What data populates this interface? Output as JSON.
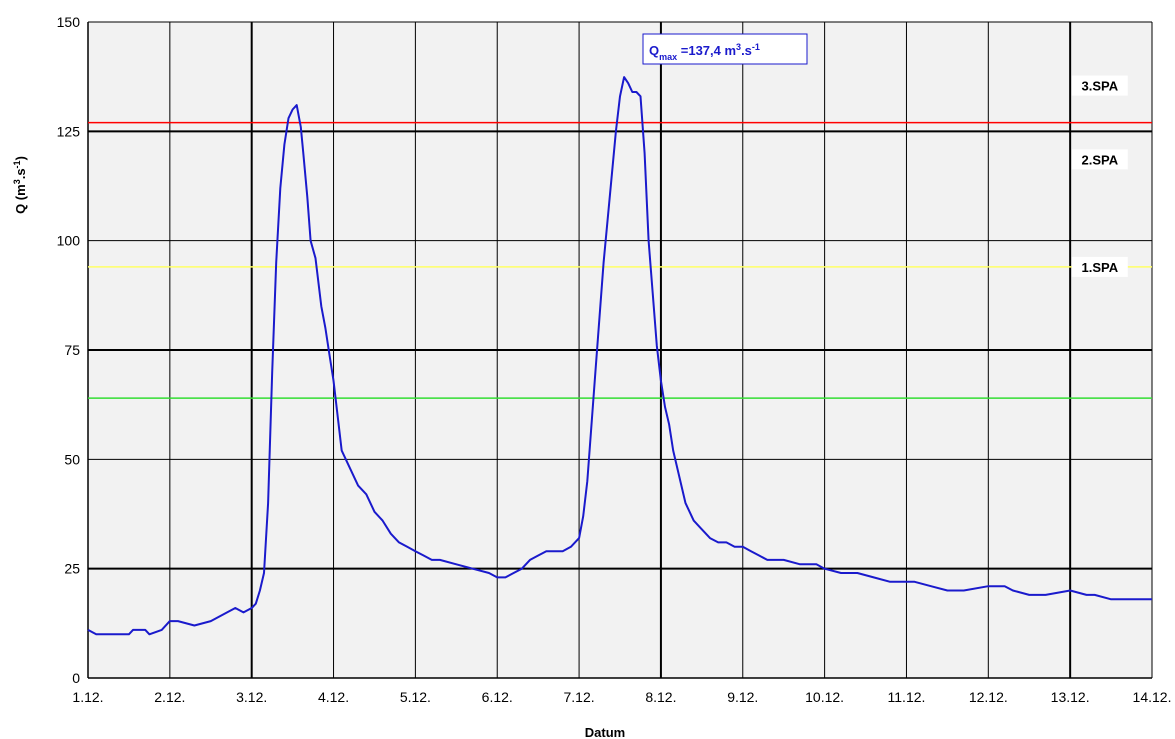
{
  "chart_data": {
    "type": "line",
    "xlabel": "Datum",
    "ylabel_main": "Q (m",
    "ylabel_sup1": "3",
    "ylabel_mid": ".s",
    "ylabel_sup2": "-1",
    "ylabel_end": ")",
    "x_tick_labels": [
      "1.12.",
      "2.12.",
      "3.12.",
      "4.12.",
      "5.12.",
      "6.12.",
      "7.12.",
      "8.12.",
      "9.12.",
      "10.12.",
      "11.12.",
      "12.12.",
      "13.12.",
      "14.12."
    ],
    "xlim_days": [
      1,
      14
    ],
    "ylim": [
      0,
      150
    ],
    "y_ticks": [
      0,
      25,
      50,
      75,
      100,
      125,
      150
    ],
    "grid": true,
    "colors": {
      "plot_background": "#f2f2f2",
      "grid": "#000000",
      "series": "#1a1acc",
      "level_3spa": "#ff0000",
      "level_1spa": "#ffff66",
      "level_green": "#33dd33"
    },
    "levels": [
      {
        "name": "3.SPA",
        "value": 127,
        "color": "#ff0000"
      },
      {
        "name": "2.SPA",
        "value": 125,
        "color": "#000000"
      },
      {
        "name": "1.SPA",
        "value": 94,
        "color": "#ffff66"
      },
      {
        "name": "",
        "value": 64,
        "color": "#33dd33"
      }
    ],
    "annotation": {
      "q": "Q",
      "sub": "max",
      "value": " =137,4 m",
      "sup1": "3",
      "mid": ".s",
      "sup2": "-1",
      "x": 7.85,
      "y": 137.4
    },
    "series": [
      {
        "name": "",
        "x": [
          1.0,
          1.1,
          1.3,
          1.4,
          1.5,
          1.55,
          1.7,
          1.75,
          1.9,
          2.0,
          2.1,
          2.3,
          2.5,
          2.7,
          2.8,
          2.9,
          3.0,
          3.05,
          3.1,
          3.15,
          3.2,
          3.25,
          3.3,
          3.35,
          3.4,
          3.45,
          3.5,
          3.55,
          3.6,
          3.63,
          3.68,
          3.72,
          3.78,
          3.85,
          3.9,
          3.95,
          4.0,
          4.05,
          4.1,
          4.2,
          4.3,
          4.4,
          4.5,
          4.6,
          4.7,
          4.8,
          4.9,
          5.0,
          5.1,
          5.2,
          5.3,
          5.5,
          5.7,
          5.9,
          6.0,
          6.1,
          6.2,
          6.3,
          6.4,
          6.5,
          6.6,
          6.8,
          6.9,
          7.0,
          7.05,
          7.1,
          7.2,
          7.3,
          7.4,
          7.45,
          7.5,
          7.55,
          7.6,
          7.65,
          7.7,
          7.75,
          7.8,
          7.85,
          7.9,
          7.95,
          8.0,
          8.05,
          8.1,
          8.15,
          8.2,
          8.25,
          8.3,
          8.35,
          8.4,
          8.5,
          8.6,
          8.7,
          8.8,
          8.9,
          9.0,
          9.1,
          9.2,
          9.3,
          9.5,
          9.7,
          9.9,
          10.0,
          10.2,
          10.4,
          10.6,
          10.8,
          11.0,
          11.1,
          11.3,
          11.5,
          11.7,
          12.0,
          12.2,
          12.3,
          12.5,
          12.7,
          13.0,
          13.2,
          13.3,
          13.5,
          13.6,
          13.7,
          13.8,
          13.9,
          14.0
        ],
        "values": [
          11,
          10,
          10,
          10,
          10,
          11,
          11,
          10,
          11,
          13,
          13,
          12,
          13,
          15,
          16,
          15,
          16,
          17,
          20,
          24,
          40,
          70,
          95,
          112,
          122,
          128,
          130,
          131,
          126,
          120,
          110,
          100,
          96,
          85,
          80,
          74,
          68,
          60,
          52,
          48,
          44,
          42,
          38,
          36,
          33,
          31,
          30,
          29,
          28,
          27,
          27,
          26,
          25,
          24,
          23,
          23,
          24,
          25,
          27,
          28,
          29,
          29,
          30,
          32,
          37,
          45,
          70,
          95,
          115,
          125,
          133,
          137.4,
          136,
          134,
          134,
          133,
          120,
          100,
          88,
          76,
          68,
          62,
          58,
          52,
          48,
          44,
          40,
          38,
          36,
          34,
          32,
          31,
          31,
          30,
          30,
          29,
          28,
          27,
          27,
          26,
          26,
          25,
          24,
          24,
          23,
          22,
          22,
          22,
          21,
          20,
          20,
          21,
          21,
          20,
          19,
          19,
          20,
          19,
          19,
          18,
          18,
          18,
          18,
          18,
          18
        ]
      }
    ]
  }
}
